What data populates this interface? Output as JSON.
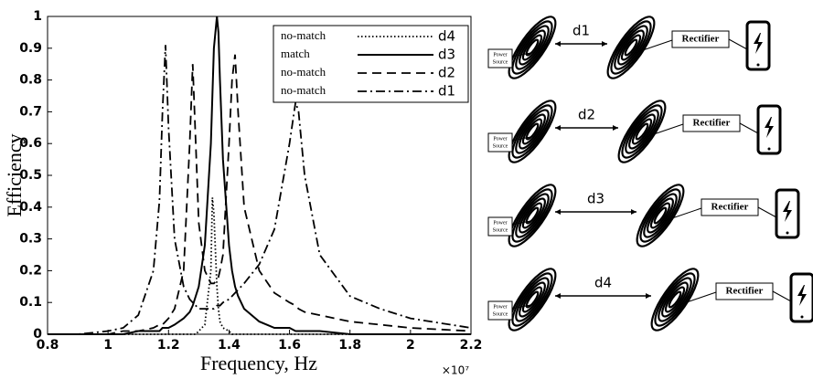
{
  "chart_data": {
    "type": "line",
    "x_label": "Frequency, Hz",
    "y_label": "Efficiency",
    "x_multiplier": "×10⁷",
    "x": [
      0.8,
      0.9,
      1.0,
      1.05,
      1.1,
      1.15,
      1.17,
      1.18,
      1.19,
      1.2,
      1.22,
      1.25,
      1.27,
      1.28,
      1.29,
      1.3,
      1.32,
      1.34,
      1.345,
      1.35,
      1.36,
      1.365,
      1.37,
      1.38,
      1.4,
      1.41,
      1.42,
      1.43,
      1.45,
      1.5,
      1.55,
      1.6,
      1.62,
      1.63,
      1.65,
      1.7,
      1.8,
      1.9,
      2.0,
      2.2
    ],
    "series": [
      {
        "name": "d4",
        "match": "no-match",
        "color": "#000",
        "style": "dotted",
        "values": [
          0,
          0,
          0,
          0,
          0,
          0,
          0,
          0,
          0,
          0,
          0,
          0,
          0,
          0,
          0,
          0.01,
          0.03,
          0.2,
          0.43,
          0.38,
          0.15,
          0.08,
          0.04,
          0.02,
          0.01,
          0,
          0,
          0,
          0,
          0,
          0,
          0,
          0,
          0,
          0,
          0,
          0,
          0,
          0,
          0
        ]
      },
      {
        "name": "d3",
        "match": "match",
        "color": "#000",
        "style": "solid",
        "values": [
          0,
          0,
          0,
          0,
          0.01,
          0.01,
          0.01,
          0.02,
          0.02,
          0.02,
          0.03,
          0.05,
          0.07,
          0.09,
          0.12,
          0.15,
          0.28,
          0.6,
          0.75,
          0.9,
          1.0,
          0.95,
          0.8,
          0.55,
          0.28,
          0.2,
          0.15,
          0.12,
          0.08,
          0.04,
          0.02,
          0.02,
          0.01,
          0.01,
          0.01,
          0.01,
          0,
          0,
          0,
          0
        ]
      },
      {
        "name": "d2",
        "match": "no-match",
        "color": "#000",
        "style": "dashed",
        "values": [
          0,
          0,
          0,
          0.01,
          0.01,
          0.02,
          0.03,
          0.03,
          0.04,
          0.05,
          0.08,
          0.2,
          0.6,
          0.85,
          0.6,
          0.35,
          0.2,
          0.16,
          0.16,
          0.16,
          0.17,
          0.18,
          0.2,
          0.25,
          0.6,
          0.8,
          0.88,
          0.7,
          0.4,
          0.2,
          0.13,
          0.1,
          0.09,
          0.08,
          0.07,
          0.06,
          0.04,
          0.03,
          0.02,
          0.01
        ]
      },
      {
        "name": "d1",
        "match": "no-match",
        "color": "#000",
        "style": "dashdot",
        "values": [
          0,
          0,
          0.01,
          0.02,
          0.06,
          0.2,
          0.42,
          0.7,
          0.91,
          0.65,
          0.3,
          0.15,
          0.11,
          0.1,
          0.09,
          0.08,
          0.08,
          0.08,
          0.08,
          0.08,
          0.09,
          0.09,
          0.09,
          0.1,
          0.11,
          0.12,
          0.13,
          0.14,
          0.16,
          0.22,
          0.33,
          0.6,
          0.73,
          0.7,
          0.5,
          0.25,
          0.12,
          0.08,
          0.05,
          0.02
        ]
      }
    ],
    "xlim": [
      0.8,
      2.2
    ],
    "xticks": [
      0.8,
      1,
      1.2,
      1.4,
      1.6,
      1.8,
      2,
      2.2
    ],
    "ylim": [
      0,
      1
    ],
    "yticks": [
      0,
      0.1,
      0.2,
      0.3,
      0.4,
      0.5,
      0.6,
      0.7,
      0.8,
      0.9,
      1
    ],
    "legend": "upper right"
  },
  "diagram": {
    "rows": [
      {
        "power_source": [
          "Power",
          "Source"
        ],
        "distance": "d1",
        "rectifier": "Rectifier"
      },
      {
        "power_source": [
          "Power",
          "Source"
        ],
        "distance": "d2",
        "rectifier": "Rectifier"
      },
      {
        "power_source": [
          "Power",
          "Source"
        ],
        "distance": "d3",
        "rectifier": "Rectifier"
      },
      {
        "power_source": [
          "Power",
          "Source"
        ],
        "distance": "d4",
        "rectifier": "Rectifier"
      }
    ]
  }
}
